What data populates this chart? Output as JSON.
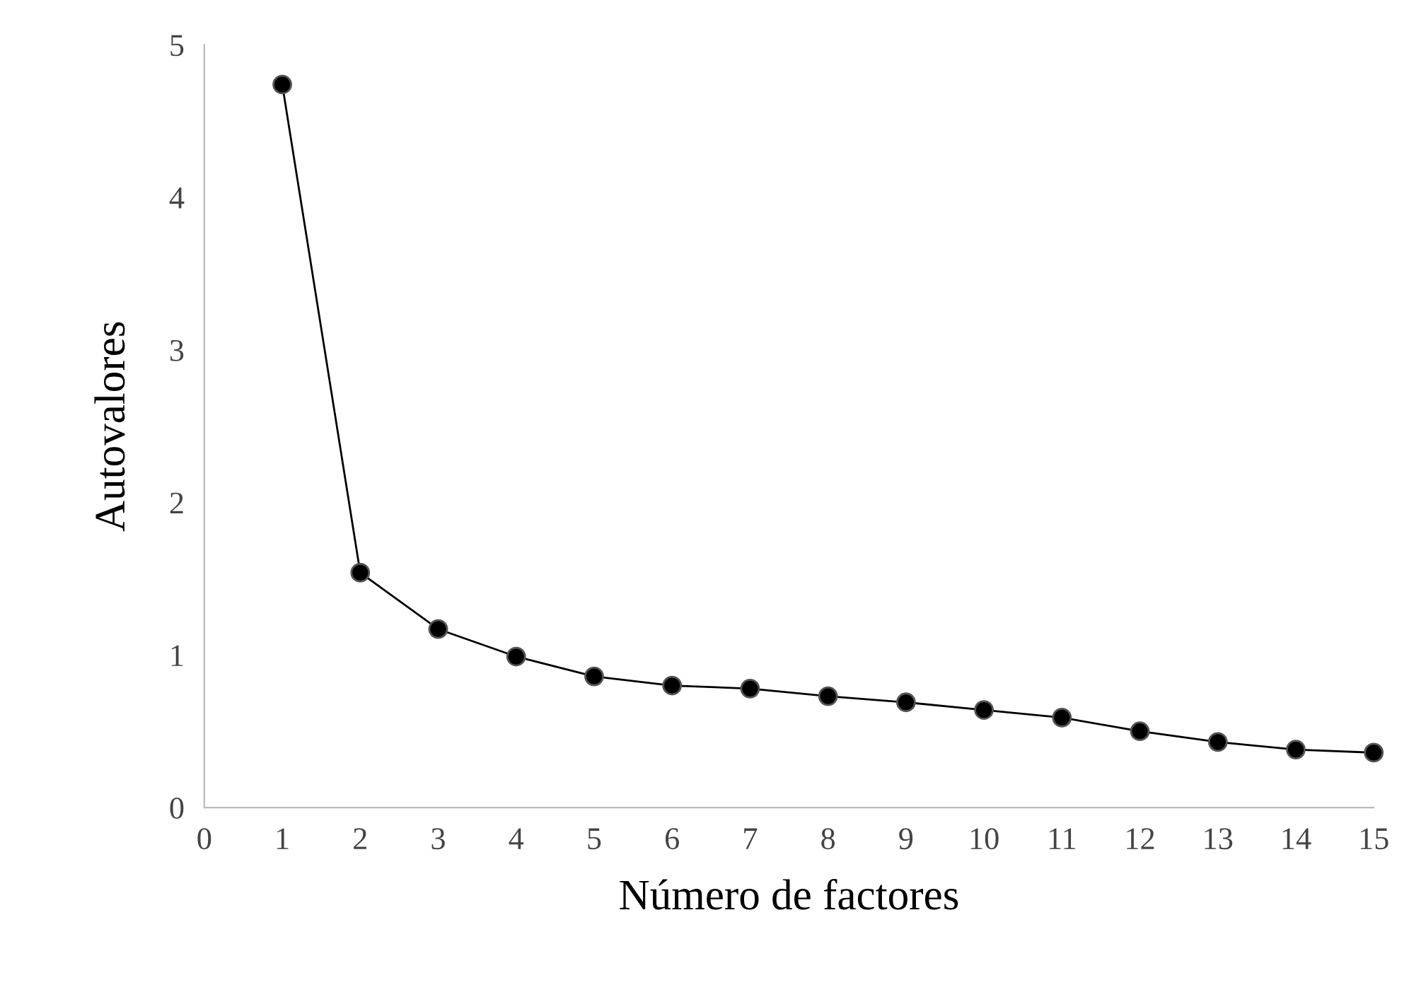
{
  "chart_data": {
    "type": "line",
    "xlabel": "Número de factores",
    "ylabel": "Autovalores",
    "x": [
      1,
      2,
      3,
      4,
      5,
      6,
      7,
      8,
      9,
      10,
      11,
      12,
      13,
      14,
      15
    ],
    "series": [
      {
        "color": "#000000",
        "values": [
          4.74,
          1.54,
          1.17,
          0.99,
          0.86,
          0.8,
          0.78,
          0.73,
          0.69,
          0.64,
          0.59,
          0.5,
          0.43,
          0.38,
          0.36
        ]
      }
    ],
    "xlim": [
      0,
      15
    ],
    "xticks": [
      0,
      1,
      2,
      3,
      4,
      5,
      6,
      7,
      8,
      9,
      10,
      11,
      12,
      13,
      14,
      15
    ],
    "ylim": [
      0,
      5
    ],
    "yticks": [
      0,
      1,
      2,
      3,
      4,
      5
    ],
    "marker": "circle",
    "line_style": "solid",
    "grid": false,
    "legend": false
  }
}
